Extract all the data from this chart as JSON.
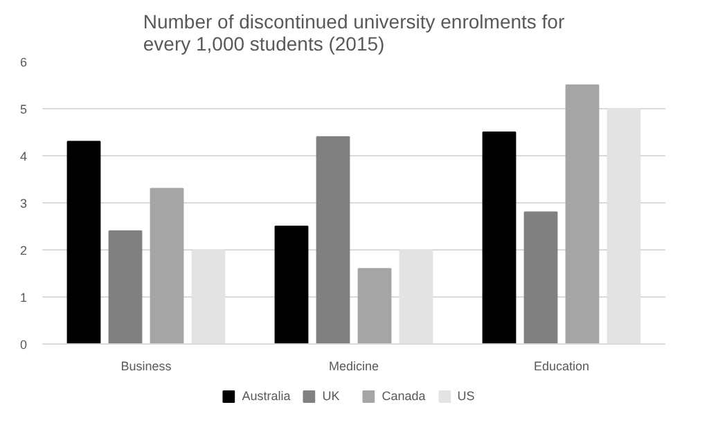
{
  "chart_data": {
    "type": "bar",
    "title": "Number of discontinued university enrolments for every 1,000 students (2015)",
    "categories": [
      "Business",
      "Medicine",
      "Education"
    ],
    "series": [
      {
        "name": "Australia",
        "color": "#000000",
        "values": [
          4.3,
          2.5,
          4.5
        ]
      },
      {
        "name": "UK",
        "color": "#808080",
        "values": [
          2.4,
          4.4,
          2.8
        ]
      },
      {
        "name": "Canada",
        "color": "#a5a5a5",
        "values": [
          3.3,
          1.6,
          5.5
        ]
      },
      {
        "name": "US",
        "color": "#e3e3e3",
        "values": [
          2.0,
          2.0,
          5.0
        ]
      }
    ],
    "ylim": [
      0,
      6
    ],
    "yticks": [
      0,
      1,
      2,
      3,
      4,
      5,
      6
    ],
    "grid": "y",
    "legend": "bottom"
  }
}
